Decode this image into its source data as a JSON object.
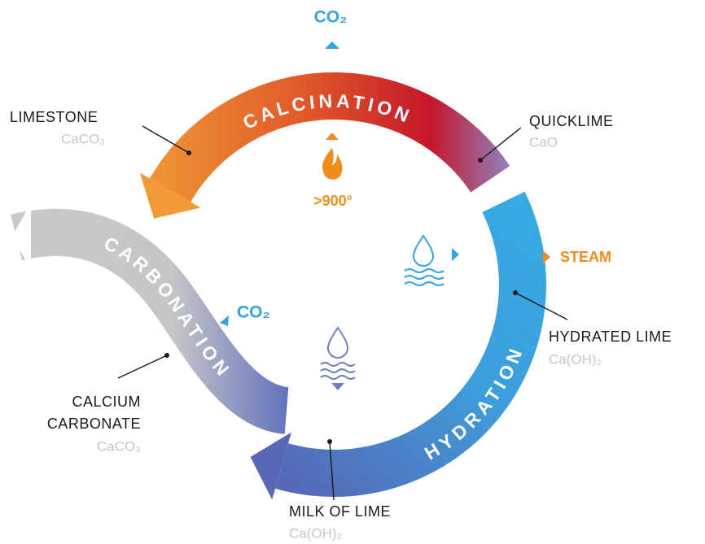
{
  "cycle": [
    {
      "label": "CALCINATION"
    },
    {
      "label": "HYDRATION"
    },
    {
      "label": "CARBONATION"
    }
  ],
  "materials": [
    {
      "name": [
        "LIMESTONE"
      ],
      "formula": "CaCO₃"
    },
    {
      "name": [
        "QUICKLIME"
      ],
      "formula": "CaO"
    },
    {
      "name": [
        "HYDRATED LIME"
      ],
      "formula": "Ca(OH)₂"
    },
    {
      "name": [
        "MILK OF LIME"
      ],
      "formula": "Ca(OH)₂"
    },
    {
      "name": [
        "CALCIUM",
        "CARBONATE"
      ],
      "formula": "CaCO₃"
    }
  ],
  "annotations": {
    "co2_released": "CO₂",
    "temperature": ">900°",
    "steam": "STEAM",
    "co2_absorbed": "CO₂"
  }
}
